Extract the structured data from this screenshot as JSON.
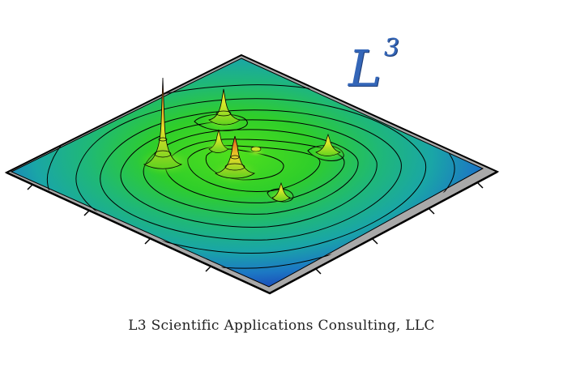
{
  "logo": {
    "letter": "L",
    "superscript": "3"
  },
  "company_name": "L3 Scientific Applications Consulting, LLC",
  "colors": {
    "logo_blue": "#3466b8",
    "frame_gray": "#a8a8a8",
    "surface_low": "#1a3fb8",
    "surface_mid": "#1fb89a",
    "surface_high": "#35d41f",
    "peak": "#e8e02a",
    "peak_tip": "#e03a1a"
  }
}
